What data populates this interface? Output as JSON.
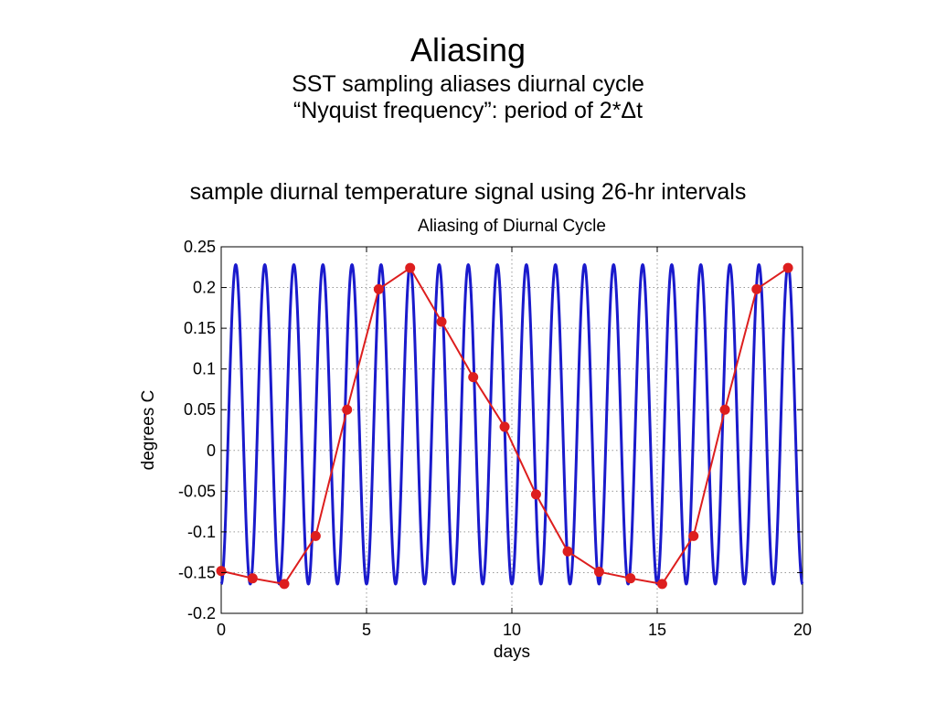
{
  "slide": {
    "title": "Aliasing",
    "subtitle_1": "SST sampling aliases diurnal cycle",
    "subtitle_2": "“Nyquist frequency”: period of 2*Δt",
    "caption": "sample diurnal temperature signal using 26-hr intervals"
  },
  "chart_data": {
    "type": "line",
    "title": "Aliasing of Diurnal Cycle",
    "xlabel": "days",
    "ylabel": "degrees C",
    "xlim": [
      0,
      20
    ],
    "ylim": [
      -0.2,
      0.25
    ],
    "x_ticks": [
      0,
      5,
      10,
      15,
      20
    ],
    "y_ticks": [
      -0.2,
      -0.15,
      -0.1,
      -0.05,
      0,
      0.05,
      0.1,
      0.15,
      0.2,
      0.25
    ],
    "x_tick_labels": [
      "0",
      "5",
      "10",
      "15",
      "20"
    ],
    "y_tick_labels": [
      "-0.2",
      "-0.15",
      "-0.1",
      "-0.05",
      "0",
      "0.05",
      "0.1",
      "0.15",
      "0.2",
      "0.25"
    ],
    "grid": true,
    "series": [
      {
        "color": "#1a1acc",
        "description": "diurnal cycle, period 1 day, range about -0.165 to 0.228",
        "x": [
          0,
          20
        ],
        "period_days": 1,
        "amplitude": 0.196,
        "offset": 0.032,
        "peak_day_fraction": 0.5
      },
      {
        "color": "#dd1e1e",
        "markers": true,
        "x": [
          0.0,
          1.08,
          2.17,
          3.25,
          4.33,
          5.42,
          6.5,
          7.58,
          8.67,
          9.75,
          10.83,
          11.92,
          13.0,
          14.08,
          15.17,
          16.25,
          17.33,
          18.42,
          19.5
        ],
        "y": [
          -0.148,
          -0.157,
          -0.164,
          -0.105,
          0.05,
          0.198,
          0.224,
          0.158,
          0.09,
          0.029,
          -0.054,
          -0.124,
          -0.149,
          -0.157,
          -0.164,
          -0.105,
          0.05,
          0.198,
          0.224
        ]
      }
    ]
  }
}
